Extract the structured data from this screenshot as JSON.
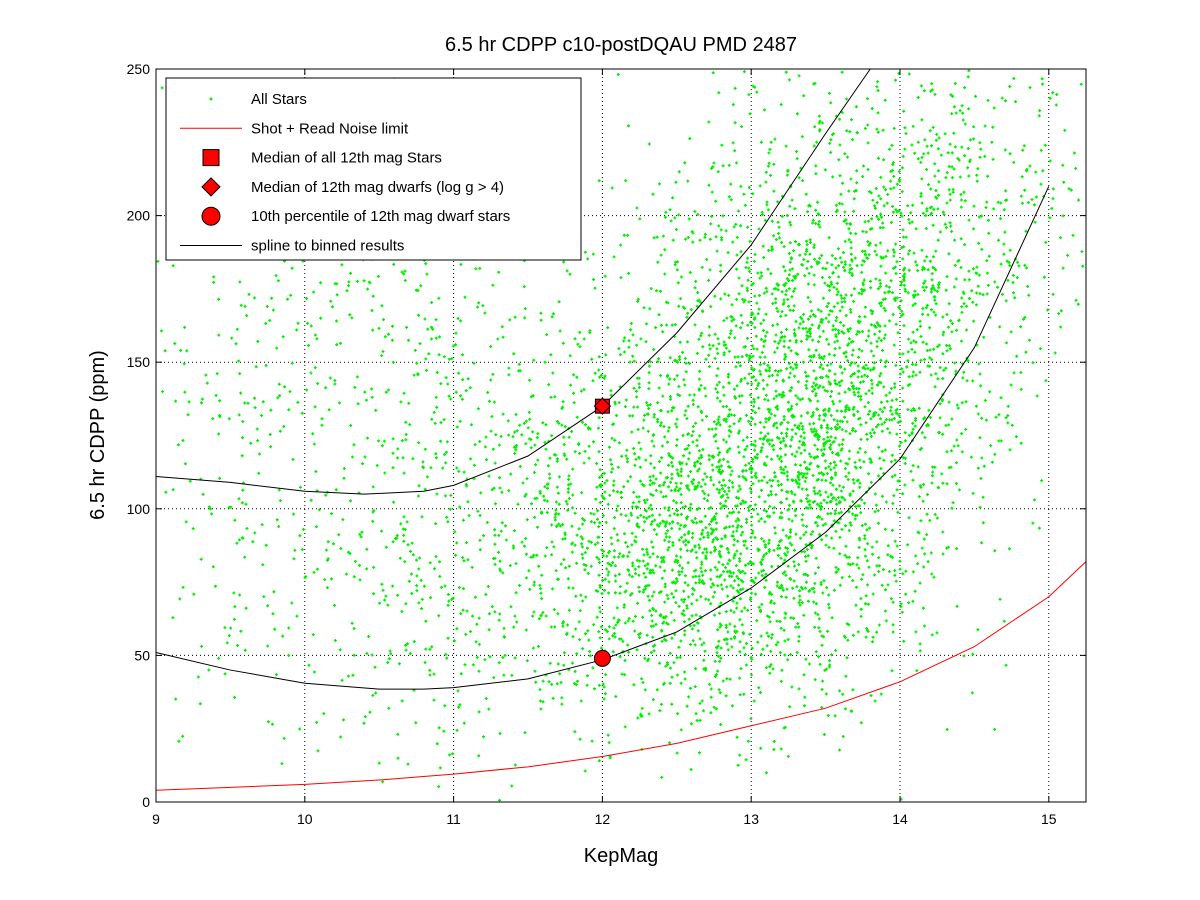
{
  "chart_data": {
    "type": "scatter",
    "title": "6.5 hr CDPP c10-postDQAU PMD 2487",
    "xlabel": "KepMag",
    "ylabel": "6.5 hr CDPP (ppm)",
    "xlim": [
      9,
      15.25
    ],
    "ylim": [
      0,
      250
    ],
    "x_ticks": [
      9,
      10,
      11,
      12,
      13,
      14,
      15
    ],
    "y_ticks": [
      0,
      50,
      100,
      150,
      200,
      250
    ],
    "grid": true,
    "legend_position": "top-left",
    "series": [
      {
        "name": "All Stars",
        "marker": "dot",
        "color": "#00ee00",
        "density_centers": [
          {
            "x": 13.4,
            "y": 140,
            "weight": 0.42,
            "sx": 0.55,
            "sy": 45
          },
          {
            "x": 12.6,
            "y": 85,
            "weight": 0.25,
            "sx": 0.55,
            "sy": 30
          },
          {
            "x": 11.3,
            "y": 110,
            "weight": 0.13,
            "sx": 0.7,
            "sy": 45
          },
          {
            "x": 14.3,
            "y": 200,
            "weight": 0.1,
            "sx": 0.5,
            "sy": 35
          },
          {
            "x": 10.0,
            "y": 140,
            "weight": 0.1,
            "sx": 0.7,
            "sy": 70
          }
        ],
        "point_count": 5200
      },
      {
        "name": "Shot + Read Noise limit",
        "marker": "line",
        "color": "#ff0000",
        "x": [
          9,
          9.5,
          10,
          10.5,
          11,
          11.5,
          12,
          12.5,
          13,
          13.5,
          14,
          14.5,
          15,
          15.25
        ],
        "y": [
          4,
          5,
          6,
          7.5,
          9.5,
          12,
          15.5,
          20,
          26,
          32,
          41,
          53,
          70,
          82
        ]
      },
      {
        "name": "Median of all 12th mag Stars",
        "marker": "square",
        "color": "#ff0000",
        "x": [
          12
        ],
        "y": [
          135
        ]
      },
      {
        "name": "Median of 12th mag dwarfs (log g > 4)",
        "marker": "diamond",
        "color": "#ff0000",
        "x": [
          12
        ],
        "y": [
          135
        ]
      },
      {
        "name": "10th percentile of 12th mag dwarf stars",
        "marker": "circle",
        "color": "#ff0000",
        "x": [
          12
        ],
        "y": [
          49
        ]
      },
      {
        "name": "spline to binned results",
        "marker": "line",
        "color": "#000000",
        "curves": [
          {
            "x": [
              9,
              9.5,
              10,
              10.4,
              10.8,
              11,
              11.5,
              12,
              12.5,
              13,
              13.5,
              13.8
            ],
            "y": [
              111,
              109,
              106,
              105,
              106,
              108,
              118,
              135,
              160,
              190,
              228,
              250
            ]
          },
          {
            "x": [
              9,
              9.5,
              10,
              10.5,
              10.8,
              11,
              11.5,
              12,
              12.5,
              13,
              13.5,
              14,
              14.5,
              15
            ],
            "y": [
              51,
              45,
              40.5,
              38.5,
              38.5,
              39,
              42,
              48.5,
              58,
              73,
              92,
              117,
              155,
              210
            ]
          }
        ]
      }
    ]
  }
}
